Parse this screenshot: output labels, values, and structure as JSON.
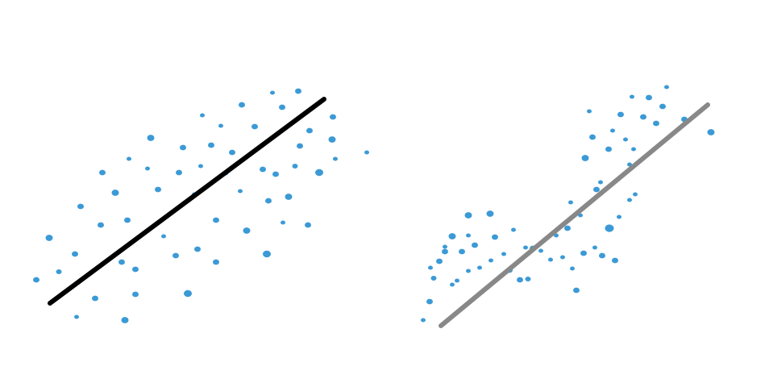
{
  "chart_data": [
    {
      "type": "scatter",
      "title": "",
      "xlabel": "",
      "ylabel": "",
      "grid": false,
      "axes_visible": false,
      "point_color": "#3b9ad6",
      "line_color": "#000000",
      "xlim": [
        0,
        477
      ],
      "ylim": [
        0,
        470
      ],
      "points": [
        {
          "x": 45,
          "y": 123,
          "r": 4
        },
        {
          "x": 61,
          "y": 175,
          "r": 4.5
        },
        {
          "x": 73,
          "y": 133,
          "r": 3.5
        },
        {
          "x": 95,
          "y": 77,
          "r": 3
        },
        {
          "x": 93,
          "y": 155,
          "r": 4
        },
        {
          "x": 100,
          "y": 214,
          "r": 4
        },
        {
          "x": 118,
          "y": 100,
          "r": 4
        },
        {
          "x": 125,
          "y": 191,
          "r": 4
        },
        {
          "x": 127,
          "y": 256,
          "r": 4
        },
        {
          "x": 143,
          "y": 231,
          "r": 4.5
        },
        {
          "x": 151,
          "y": 145,
          "r": 4
        },
        {
          "x": 155,
          "y": 73,
          "r": 4.5
        },
        {
          "x": 158,
          "y": 197,
          "r": 4
        },
        {
          "x": 160,
          "y": 273,
          "r": 3
        },
        {
          "x": 168,
          "y": 136,
          "r": 4
        },
        {
          "x": 168,
          "y": 105,
          "r": 4
        },
        {
          "x": 183,
          "y": 261,
          "r": 3
        },
        {
          "x": 187,
          "y": 299,
          "r": 4.5
        },
        {
          "x": 196,
          "y": 235,
          "r": 4
        },
        {
          "x": 203,
          "y": 177,
          "r": 3
        },
        {
          "x": 218,
          "y": 153,
          "r": 4
        },
        {
          "x": 222,
          "y": 256,
          "r": 4
        },
        {
          "x": 227,
          "y": 287,
          "r": 4
        },
        {
          "x": 233,
          "y": 106,
          "r": 5
        },
        {
          "x": 241,
          "y": 229,
          "r": 3
        },
        {
          "x": 245,
          "y": 161,
          "r": 4
        },
        {
          "x": 249,
          "y": 264,
          "r": 3
        },
        {
          "x": 251,
          "y": 327,
          "r": 3
        },
        {
          "x": 262,
          "y": 290,
          "r": 4
        },
        {
          "x": 268,
          "y": 145,
          "r": 4
        },
        {
          "x": 268,
          "y": 197,
          "r": 4
        },
        {
          "x": 274,
          "y": 314,
          "r": 3
        },
        {
          "x": 280,
          "y": 255,
          "r": 3
        },
        {
          "x": 288,
          "y": 281,
          "r": 4
        },
        {
          "x": 298,
          "y": 233,
          "r": 3
        },
        {
          "x": 300,
          "y": 340,
          "r": 4
        },
        {
          "x": 306,
          "y": 184,
          "r": 4.5
        },
        {
          "x": 316,
          "y": 313,
          "r": 4
        },
        {
          "x": 326,
          "y": 260,
          "r": 4
        },
        {
          "x": 331,
          "y": 155,
          "r": 5
        },
        {
          "x": 333,
          "y": 221,
          "r": 4
        },
        {
          "x": 338,
          "y": 355,
          "r": 3
        },
        {
          "x": 342,
          "y": 254,
          "r": 4
        },
        {
          "x": 351,
          "y": 194,
          "r": 3
        },
        {
          "x": 350,
          "y": 337,
          "r": 4
        },
        {
          "x": 358,
          "y": 226,
          "r": 4.5
        },
        {
          "x": 366,
          "y": 264,
          "r": 3.5
        },
        {
          "x": 370,
          "y": 357,
          "r": 4
        },
        {
          "x": 372,
          "y": 289,
          "r": 4
        },
        {
          "x": 382,
          "y": 191,
          "r": 4
        },
        {
          "x": 384,
          "y": 308,
          "r": 4
        },
        {
          "x": 396,
          "y": 256,
          "r": 5
        },
        {
          "x": 412,
          "y": 297,
          "r": 4.5
        },
        {
          "x": 413,
          "y": 325,
          "r": 4
        },
        {
          "x": 416,
          "y": 273,
          "r": 3
        },
        {
          "x": 455,
          "y": 281,
          "r": 3
        }
      ],
      "fit_line": {
        "x": [
          62,
          402
        ],
        "y": [
          94,
          347
        ]
      }
    },
    {
      "type": "scatter",
      "title": "",
      "xlabel": "",
      "ylabel": "",
      "grid": false,
      "axes_visible": false,
      "point_color": "#3b9ad6",
      "line_color": "#888888",
      "xlim": [
        0,
        477
      ],
      "ylim": [
        0,
        470
      ],
      "points": [
        {
          "x": 48,
          "y": 73,
          "r": 3
        },
        {
          "x": 56,
          "y": 96,
          "r": 4
        },
        {
          "x": 57,
          "y": 138,
          "r": 3
        },
        {
          "x": 61,
          "y": 125,
          "r": 3.5
        },
        {
          "x": 68,
          "y": 146,
          "r": 4
        },
        {
          "x": 75,
          "y": 164,
          "r": 3
        },
        {
          "x": 75,
          "y": 158,
          "r": 4
        },
        {
          "x": 84,
          "y": 117,
          "r": 3
        },
        {
          "x": 84,
          "y": 177,
          "r": 4.5
        },
        {
          "x": 90,
          "y": 122,
          "r": 3
        },
        {
          "x": 96,
          "y": 158,
          "r": 4
        },
        {
          "x": 104,
          "y": 134,
          "r": 3
        },
        {
          "x": 104,
          "y": 203,
          "r": 4.5
        },
        {
          "x": 104,
          "y": 178,
          "r": 3
        },
        {
          "x": 112,
          "y": 166,
          "r": 4
        },
        {
          "x": 118,
          "y": 138,
          "r": 3
        },
        {
          "x": 132,
          "y": 147,
          "r": 3
        },
        {
          "x": 131,
          "y": 205,
          "r": 4.5
        },
        {
          "x": 137,
          "y": 176,
          "r": 4
        },
        {
          "x": 148,
          "y": 155,
          "r": 3
        },
        {
          "x": 155,
          "y": 135,
          "r": 4
        },
        {
          "x": 160,
          "y": 185,
          "r": 3
        },
        {
          "x": 168,
          "y": 123,
          "r": 4
        },
        {
          "x": 175,
          "y": 163,
          "r": 3
        },
        {
          "x": 178,
          "y": 124,
          "r": 3.5
        },
        {
          "x": 184,
          "y": 162,
          "r": 4
        },
        {
          "x": 194,
          "y": 159,
          "r": 3
        },
        {
          "x": 206,
          "y": 148,
          "r": 3
        },
        {
          "x": 213,
          "y": 178,
          "r": 3
        },
        {
          "x": 221,
          "y": 151,
          "r": 3
        },
        {
          "x": 227,
          "y": 187,
          "r": 4
        },
        {
          "x": 231,
          "y": 219,
          "r": 3
        },
        {
          "x": 233,
          "y": 137,
          "r": 3
        },
        {
          "x": 238,
          "y": 110,
          "r": 4
        },
        {
          "x": 243,
          "y": 203,
          "r": 3
        },
        {
          "x": 247,
          "y": 156,
          "r": 4
        },
        {
          "x": 249,
          "y": 274,
          "r": 4.5
        },
        {
          "x": 254,
          "y": 332,
          "r": 3
        },
        {
          "x": 258,
          "y": 300,
          "r": 4
        },
        {
          "x": 261,
          "y": 163,
          "r": 3
        },
        {
          "x": 263,
          "y": 235,
          "r": 4
        },
        {
          "x": 268,
          "y": 244,
          "r": 3
        },
        {
          "x": 270,
          "y": 153,
          "r": 4
        },
        {
          "x": 278,
          "y": 285,
          "r": 4
        },
        {
          "x": 279,
          "y": 187,
          "r": 5.5
        },
        {
          "x": 283,
          "y": 308,
          "r": 3
        },
        {
          "x": 286,
          "y": 147,
          "r": 4
        },
        {
          "x": 291,
          "y": 201,
          "r": 3
        },
        {
          "x": 293,
          "y": 328,
          "r": 4
        },
        {
          "x": 299,
          "y": 297,
          "r": 3
        },
        {
          "x": 304,
          "y": 222,
          "r": 3
        },
        {
          "x": 304,
          "y": 266,
          "r": 3
        },
        {
          "x": 307,
          "y": 350,
          "r": 3
        },
        {
          "x": 309,
          "y": 285,
          "r": 3
        },
        {
          "x": 311,
          "y": 229,
          "r": 3
        },
        {
          "x": 321,
          "y": 325,
          "r": 4
        },
        {
          "x": 328,
          "y": 349,
          "r": 4
        },
        {
          "x": 337,
          "y": 317,
          "r": 4
        },
        {
          "x": 345,
          "y": 338,
          "r": 4
        },
        {
          "x": 350,
          "y": 362,
          "r": 3
        },
        {
          "x": 372,
          "y": 322,
          "r": 4
        },
        {
          "x": 405,
          "y": 306,
          "r": 4.5
        }
      ],
      "fit_line": {
        "x": [
          70,
          401
        ],
        "y": [
          66,
          340
        ]
      }
    }
  ]
}
